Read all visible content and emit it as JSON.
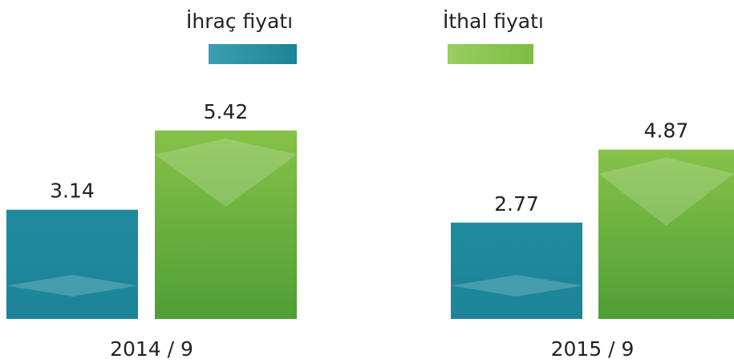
{
  "chart_data": {
    "type": "bar",
    "categories": [
      "2014 / 9",
      "2015 / 9"
    ],
    "series": [
      {
        "name": "İhraç fiyatı",
        "color": "#1f8a9e",
        "values": [
          3.14,
          2.77
        ]
      },
      {
        "name": "İthal fiyatı",
        "color": "#7dbd42",
        "values": [
          5.42,
          4.87
        ]
      }
    ]
  }
}
